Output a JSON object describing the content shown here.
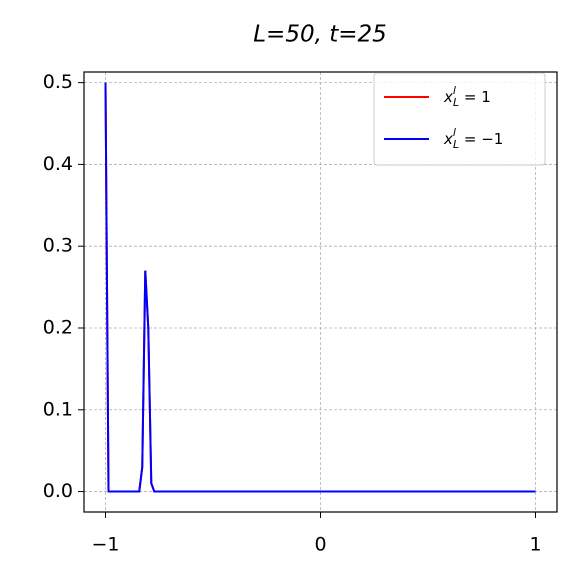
{
  "chart_data": {
    "type": "line",
    "title": "L=50, t=25",
    "x": [
      -1,
      -0.986,
      -0.843,
      -0.829,
      -0.815,
      -0.801,
      -0.787,
      -0.773,
      1
    ],
    "series": [
      {
        "name": "x_L^l = 1",
        "color": "#ff0000",
        "values": [
          0.5,
          0,
          0,
          0.03,
          0.27,
          0.2,
          0.01,
          0,
          0
        ]
      },
      {
        "name": "x_L^l = −1",
        "color": "#0000ff",
        "values": [
          0.5,
          0,
          0,
          0.03,
          0.27,
          0.2,
          0.01,
          0,
          0
        ]
      }
    ],
    "xlim": [
      -1.1,
      1.1
    ],
    "ylim": [
      -0.025,
      0.513
    ],
    "xticks": [
      {
        "value": -1,
        "label": "−1"
      },
      0,
      1
    ],
    "yticks": [
      {
        "value": 0,
        "label": "0.0"
      },
      0.1,
      0.2,
      0.3,
      0.4,
      0.5
    ],
    "grid": true,
    "legend": "upper right"
  }
}
